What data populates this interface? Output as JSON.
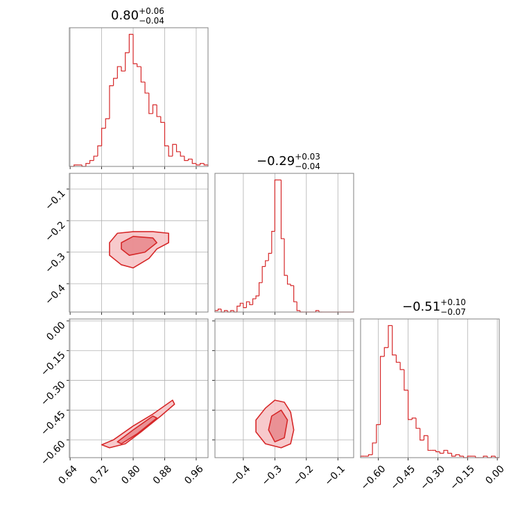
{
  "chart_data": {
    "type": "corner",
    "color": "#d62728",
    "fill_outer": "#f6c1c3",
    "fill_inner": "#e8878b",
    "grid": true,
    "params": [
      {
        "lim": [
          0.638,
          0.99
        ],
        "ticks": [
          0.64,
          0.72,
          {
            "value": 0.8,
            "label": "0.80"
          },
          0.88,
          0.96
        ],
        "title": {
          "main": "0.80",
          "upper": "+0.06",
          "lower": "−0.04"
        },
        "bins": [
          0.64,
          0.65,
          0.66,
          0.67,
          0.68,
          0.69,
          0.7,
          0.71,
          0.72,
          0.73,
          0.74,
          0.75,
          0.76,
          0.77,
          0.78,
          0.79,
          0.8,
          0.81,
          0.82,
          0.83,
          0.84,
          0.85,
          0.86,
          0.87,
          0.88,
          0.89,
          0.9,
          0.91,
          0.92,
          0.93,
          0.94,
          0.95,
          0.96,
          0.97,
          0.98,
          0.99
        ],
        "counts": [
          0,
          2,
          2,
          0,
          4,
          8,
          14,
          28,
          52,
          65,
          110,
          120,
          136,
          130,
          155,
          180,
          140,
          136,
          115,
          100,
          72,
          84,
          68,
          60,
          28,
          14,
          30,
          20,
          14,
          8,
          10,
          4,
          2,
          4,
          2
        ]
      },
      {
        "lim": [
          -0.49,
          -0.05
        ],
        "ticks": [
          {
            "value": -0.4,
            "label": "−0.4"
          },
          {
            "value": -0.3,
            "label": "−0.3"
          },
          {
            "value": -0.2,
            "label": "−0.2"
          },
          {
            "value": -0.1,
            "label": "−0.1"
          }
        ],
        "title": {
          "main": "−0.29",
          "upper": "+0.03",
          "lower": "−0.04"
        },
        "bins": [
          -0.49,
          -0.48,
          -0.47,
          -0.46,
          -0.45,
          -0.44,
          -0.43,
          -0.42,
          -0.41,
          -0.4,
          -0.39,
          -0.38,
          -0.37,
          -0.36,
          -0.35,
          -0.34,
          -0.33,
          -0.32,
          -0.31,
          -0.3,
          -0.29,
          -0.28,
          -0.27,
          -0.26,
          -0.25,
          -0.24,
          -0.23,
          -0.22,
          -0.21,
          -0.2,
          -0.19,
          -0.18,
          -0.17,
          -0.16,
          -0.15,
          -0.14,
          -0.13,
          -0.12,
          -0.11,
          -0.1,
          -0.09,
          -0.08,
          -0.07,
          -0.06,
          -0.05
        ],
        "counts": [
          2,
          4,
          0,
          2,
          0,
          2,
          0,
          8,
          12,
          6,
          14,
          10,
          18,
          22,
          40,
          62,
          70,
          80,
          110,
          180,
          180,
          100,
          50,
          38,
          36,
          14,
          2,
          0,
          0,
          0,
          0,
          0,
          2,
          0,
          0,
          0,
          0,
          0,
          0,
          0,
          0,
          0,
          0,
          0
        ]
      },
      {
        "lim": [
          -0.69,
          0.01
        ],
        "ticks": [
          {
            "value": -0.6,
            "label": "−0.60"
          },
          {
            "value": -0.45,
            "label": "−0.45"
          },
          {
            "value": -0.3,
            "label": "−0.30"
          },
          {
            "value": -0.15,
            "label": "−0.15"
          },
          {
            "value": 0,
            "label": "0.00"
          }
        ],
        "title": {
          "main": "−0.51",
          "upper": "+0.10",
          "lower": "−0.07"
        },
        "bins": [
          -0.69,
          -0.67,
          -0.65,
          -0.63,
          -0.61,
          -0.59,
          -0.57,
          -0.55,
          -0.53,
          -0.51,
          -0.49,
          -0.47,
          -0.45,
          -0.43,
          -0.41,
          -0.39,
          -0.37,
          -0.35,
          -0.33,
          -0.31,
          -0.29,
          -0.27,
          -0.25,
          -0.23,
          -0.21,
          -0.19,
          -0.17,
          -0.15,
          -0.13,
          -0.11,
          -0.09,
          -0.07,
          -0.05,
          -0.03,
          -0.01,
          0.01
        ],
        "counts": [
          2,
          2,
          4,
          20,
          45,
          138,
          150,
          180,
          140,
          130,
          120,
          92,
          52,
          54,
          40,
          24,
          30,
          10,
          10,
          8,
          6,
          10,
          6,
          2,
          4,
          2,
          0,
          2,
          2,
          0,
          0,
          2,
          0,
          2,
          0
        ]
      }
    ],
    "pairs": [
      {
        "x_param": 0,
        "y_param": 1,
        "contours": [
          {
            "x": [
              0.74,
              0.76,
              0.8,
              0.85,
              0.89,
              0.89,
              0.86,
              0.84,
              0.8,
              0.77,
              0.74
            ],
            "y": [
              -0.27,
              -0.24,
              -0.235,
              -0.235,
              -0.24,
              -0.27,
              -0.29,
              -0.32,
              -0.35,
              -0.34,
              -0.31
            ]
          },
          {
            "x": [
              0.77,
              0.8,
              0.85,
              0.86,
              0.83,
              0.79,
              0.77
            ],
            "y": [
              -0.27,
              -0.25,
              -0.255,
              -0.27,
              -0.3,
              -0.31,
              -0.29
            ]
          }
        ]
      },
      {
        "x_param": 0,
        "y_param": 2,
        "contours": [
          {
            "x": [
              0.72,
              0.75,
              0.8,
              0.85,
              0.9,
              0.905,
              0.87,
              0.82,
              0.78,
              0.74
            ],
            "y": [
              -0.625,
              -0.6,
              -0.53,
              -0.47,
              -0.4,
              -0.42,
              -0.48,
              -0.56,
              -0.62,
              -0.64
            ]
          },
          {
            "x": [
              0.76,
              0.8,
              0.85,
              0.86,
              0.81,
              0.77
            ],
            "y": [
              -0.61,
              -0.55,
              -0.48,
              -0.49,
              -0.57,
              -0.62
            ]
          }
        ]
      },
      {
        "x_param": 1,
        "y_param": 2,
        "contours": [
          {
            "x": [
              -0.36,
              -0.33,
              -0.3,
              -0.27,
              -0.25,
              -0.24,
              -0.25,
              -0.28,
              -0.33,
              -0.36
            ],
            "y": [
              -0.5,
              -0.44,
              -0.4,
              -0.41,
              -0.46,
              -0.55,
              -0.62,
              -0.64,
              -0.62,
              -0.56
            ]
          },
          {
            "x": [
              -0.31,
              -0.28,
              -0.26,
              -0.27,
              -0.3,
              -0.32
            ],
            "y": [
              -0.48,
              -0.45,
              -0.5,
              -0.59,
              -0.61,
              -0.55
            ]
          }
        ]
      }
    ]
  }
}
